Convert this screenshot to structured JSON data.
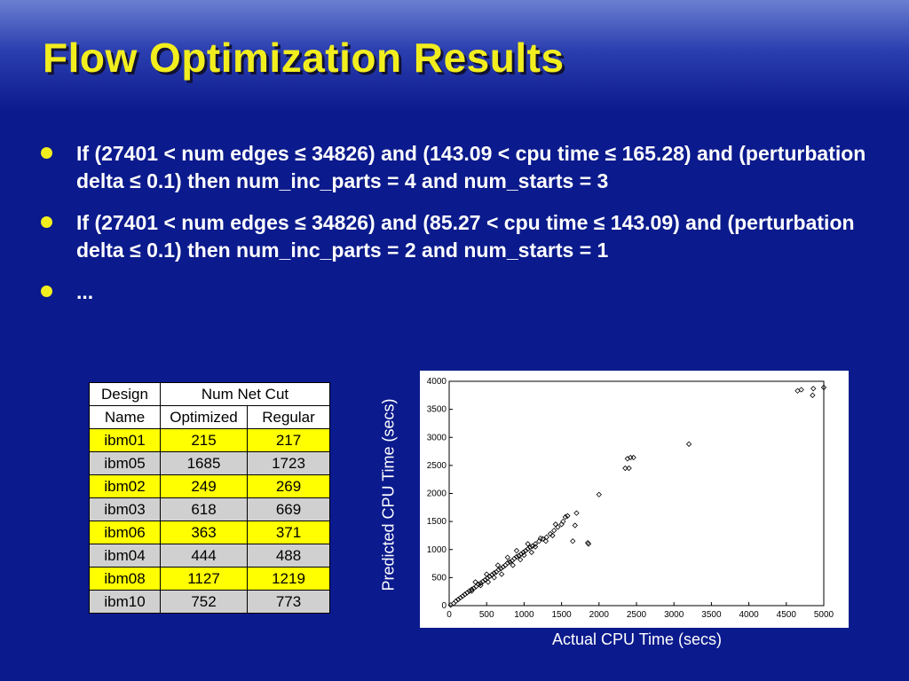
{
  "slide": {
    "title": "Flow Optimization Results",
    "bullets": [
      "If (27401 < num edges ≤ 34826) and (143.09 < cpu time ≤ 165.28) and (perturbation delta ≤ 0.1) then num_inc_parts = 4 and num_starts = 3",
      "If (27401 < num edges ≤ 34826) and (85.27 < cpu time ≤ 143.09) and (perturbation delta ≤ 0.1) then num_inc_parts = 2 and num_starts = 1",
      "..."
    ],
    "colors": {
      "background": "#0b1a8c",
      "title": "#f2ee1e",
      "highlight_row": "#ffff00",
      "alt_row": "#d0d0d0"
    }
  },
  "table": {
    "header_design_1": "Design",
    "header_design_2": "Name",
    "header_group": "Num Net Cut",
    "header_optimized": "Optimized",
    "header_regular": "Regular",
    "rows": [
      {
        "name": "ibm01",
        "optimized": "215",
        "regular": "217"
      },
      {
        "name": "ibm05",
        "optimized": "1685",
        "regular": "1723"
      },
      {
        "name": "ibm02",
        "optimized": "249",
        "regular": "269"
      },
      {
        "name": "ibm03",
        "optimized": "618",
        "regular": "669"
      },
      {
        "name": "ibm06",
        "optimized": "363",
        "regular": "371"
      },
      {
        "name": "ibm04",
        "optimized": "444",
        "regular": "488"
      },
      {
        "name": "ibm08",
        "optimized": "1127",
        "regular": "1219"
      },
      {
        "name": "ibm10",
        "optimized": "752",
        "regular": "773"
      }
    ]
  },
  "chart_data": {
    "type": "scatter",
    "xlabel": "Actual CPU Time (secs)",
    "ylabel": "Predicted CPU Time (secs)",
    "xlim": [
      0,
      5000
    ],
    "ylim": [
      0,
      4000
    ],
    "xticks": [
      0,
      500,
      1000,
      1500,
      2000,
      2500,
      3000,
      3500,
      4000,
      4500,
      5000
    ],
    "yticks": [
      0,
      500,
      1000,
      1500,
      2000,
      2500,
      3000,
      3500,
      4000
    ],
    "grid": false,
    "marker": "diamond",
    "points": [
      [
        20,
        10
      ],
      [
        60,
        40
      ],
      [
        90,
        80
      ],
      [
        120,
        110
      ],
      [
        150,
        140
      ],
      [
        180,
        170
      ],
      [
        210,
        200
      ],
      [
        240,
        230
      ],
      [
        270,
        260
      ],
      [
        300,
        290
      ],
      [
        330,
        310
      ],
      [
        360,
        340
      ],
      [
        390,
        380
      ],
      [
        420,
        400
      ],
      [
        450,
        430
      ],
      [
        480,
        460
      ],
      [
        510,
        490
      ],
      [
        540,
        520
      ],
      [
        570,
        550
      ],
      [
        600,
        580
      ],
      [
        630,
        600
      ],
      [
        660,
        640
      ],
      [
        690,
        660
      ],
      [
        720,
        690
      ],
      [
        750,
        720
      ],
      [
        780,
        760
      ],
      [
        810,
        780
      ],
      [
        840,
        800
      ],
      [
        870,
        840
      ],
      [
        900,
        870
      ],
      [
        930,
        890
      ],
      [
        960,
        920
      ],
      [
        990,
        950
      ],
      [
        1020,
        980
      ],
      [
        1050,
        1010
      ],
      [
        1080,
        1040
      ],
      [
        1110,
        1060
      ],
      [
        1150,
        1100
      ],
      [
        1200,
        1150
      ],
      [
        1250,
        1190
      ],
      [
        1300,
        1220
      ],
      [
        1350,
        1280
      ],
      [
        1400,
        1340
      ],
      [
        1450,
        1400
      ],
      [
        1500,
        1450
      ],
      [
        1520,
        1500
      ],
      [
        1550,
        1580
      ],
      [
        300,
        260
      ],
      [
        350,
        420
      ],
      [
        420,
        360
      ],
      [
        500,
        560
      ],
      [
        520,
        420
      ],
      [
        600,
        500
      ],
      [
        650,
        720
      ],
      [
        700,
        560
      ],
      [
        780,
        860
      ],
      [
        850,
        720
      ],
      [
        900,
        980
      ],
      [
        950,
        820
      ],
      [
        1000,
        900
      ],
      [
        1050,
        1100
      ],
      [
        1100,
        950
      ],
      [
        1150,
        1050
      ],
      [
        1220,
        1200
      ],
      [
        1290,
        1150
      ],
      [
        1380,
        1250
      ],
      [
        1420,
        1450
      ],
      [
        1580,
        1600
      ],
      [
        1650,
        1150
      ],
      [
        1680,
        1430
      ],
      [
        1700,
        1650
      ],
      [
        1850,
        1120
      ],
      [
        1860,
        1100
      ],
      [
        2000,
        1980
      ],
      [
        2350,
        2450
      ],
      [
        2380,
        2620
      ],
      [
        2400,
        2450
      ],
      [
        2420,
        2640
      ],
      [
        2460,
        2640
      ],
      [
        3200,
        2880
      ],
      [
        4650,
        3830
      ],
      [
        4700,
        3850
      ],
      [
        4850,
        3750
      ],
      [
        4860,
        3870
      ],
      [
        5000,
        3890
      ]
    ]
  }
}
